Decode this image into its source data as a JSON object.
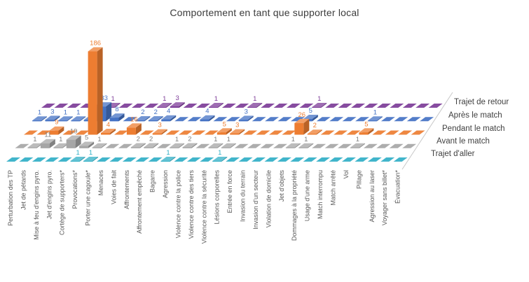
{
  "title": "Comportement en tant que supporter local",
  "chart_data": {
    "type": "bar",
    "subtype": "3d-column",
    "title": "Comportement en tant que supporter local",
    "xlabel": "",
    "ylabel": "",
    "ylim": [
      0,
      200
    ],
    "grid": false,
    "legend_position": "right-depth-axis",
    "categories": [
      "Perturbation des TP",
      "Jet de pétards",
      "Mise à feu d'engins pyro.",
      "Jet d'engins pyro.",
      "Cortège de supporters*",
      "Provocations*",
      "Porter une cagoule*",
      "Menaces",
      "Voies de fait",
      "Affrontements",
      "Affrontement empêché",
      "Bagarre",
      "Agression",
      "Violence contre la police",
      "Violence contre des tiers",
      "Violence contre la sécurité",
      "Lésions corporelles",
      "Entrée en force",
      "Invasion du terrain",
      "Invasion d'un secteur",
      "Violation de domicile",
      "Jet d'objets",
      "Dommages à la propriété",
      "Usage d'une arme",
      "Match interrompu",
      "Match arrêté",
      "Vol",
      "Pillage",
      "Agression au laser",
      "Voyager sans billet*",
      "Évacuation*"
    ],
    "series": [
      {
        "name": "Trajet d'aller",
        "color": "#31AFC6",
        "label_color": "#31AFC6",
        "values": [
          0,
          0,
          0,
          0,
          0,
          1,
          1,
          0,
          0,
          0,
          0,
          0,
          1,
          0,
          0,
          0,
          1,
          0,
          0,
          0,
          0,
          0,
          0,
          0,
          0,
          0,
          0,
          0,
          0,
          0,
          0
        ]
      },
      {
        "name": "Avant le match",
        "color": "#A6A6A6",
        "label_color": "#7F7F7F",
        "values": [
          0,
          1,
          11,
          1,
          19,
          5,
          1,
          0,
          0,
          2,
          2,
          0,
          1,
          2,
          0,
          1,
          1,
          0,
          0,
          0,
          0,
          1,
          1,
          0,
          0,
          0,
          1,
          0,
          0,
          0,
          0
        ]
      },
      {
        "name": "Pendant le match",
        "color": "#ED7D31",
        "label_color": "#ED7D31",
        "values": [
          0,
          0,
          9,
          0,
          0,
          186,
          4,
          0,
          16,
          0,
          3,
          0,
          0,
          0,
          0,
          5,
          3,
          0,
          0,
          0,
          0,
          26,
          2,
          0,
          0,
          0,
          5,
          0,
          0,
          0,
          0
        ]
      },
      {
        "name": "Après le match",
        "color": "#4472C4",
        "label_color": "#4472C4",
        "values": [
          1,
          3,
          1,
          1,
          3,
          33,
          8,
          0,
          2,
          2,
          4,
          0,
          0,
          4,
          0,
          0,
          3,
          0,
          0,
          0,
          0,
          5,
          0,
          0,
          0,
          0,
          1,
          0,
          0,
          0,
          0
        ]
      },
      {
        "name": "Trajet de retour",
        "color": "#7D3C98",
        "label_color": "#7D3C98",
        "values": [
          0,
          0,
          0,
          0,
          0,
          1,
          0,
          0,
          0,
          1,
          3,
          0,
          0,
          1,
          0,
          0,
          1,
          0,
          0,
          0,
          0,
          1,
          0,
          0,
          0,
          0,
          0,
          0,
          0,
          0,
          0
        ]
      }
    ],
    "axis_label_color": "#595959",
    "axis_line_color": "#C8C8C8"
  }
}
